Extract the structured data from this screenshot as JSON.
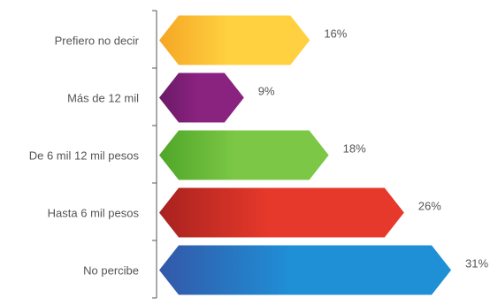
{
  "chart_data": {
    "type": "bar",
    "orientation": "horizontal",
    "categories": [
      "Prefiero no decir",
      "Más de 12 mil",
      "De 6 mil 12 mil pesos",
      "Hasta 6 mil pesos",
      "No percibe"
    ],
    "values": [
      16,
      9,
      18,
      26,
      31
    ],
    "value_labels": [
      "16%",
      "9%",
      "18%",
      "26%",
      "31%"
    ],
    "unit": "%",
    "xlim": [
      0,
      31
    ],
    "grid": false,
    "legend": "none",
    "colors": [
      {
        "dark": "#f5a623",
        "light": "#ffd040"
      },
      {
        "dark": "#6a1a66",
        "light": "#8a2280"
      },
      {
        "dark": "#4fa628",
        "light": "#7cc746"
      },
      {
        "dark": "#a8221f",
        "light": "#e6392b"
      },
      {
        "dark": "#3358a8",
        "light": "#1f8fd6"
      }
    ]
  }
}
